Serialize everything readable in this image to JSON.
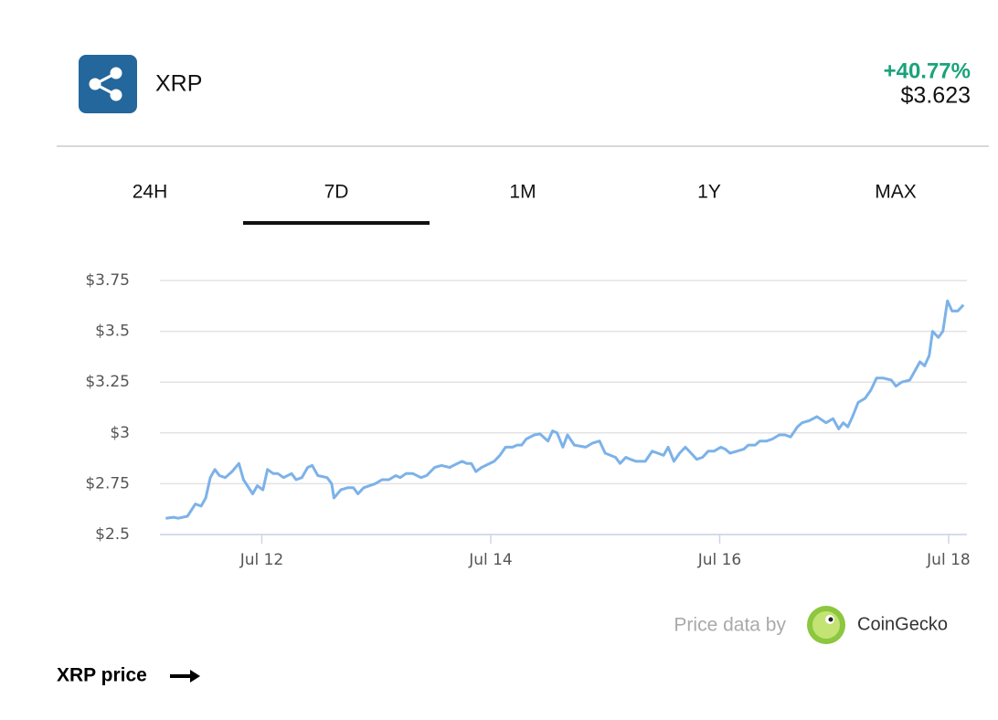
{
  "header": {
    "symbol": "XRP",
    "change": "+40.77%",
    "price": "$3.623"
  },
  "tabs": [
    "24H",
    "7D",
    "1M",
    "1Y",
    "MAX"
  ],
  "active_tab": 1,
  "chart_data": {
    "type": "line",
    "x": [
      11.16,
      11.23,
      11.27,
      11.35,
      11.42,
      11.47,
      11.51,
      11.55,
      11.59,
      11.63,
      11.68,
      11.74,
      11.8,
      11.84,
      11.92,
      11.96,
      12.01,
      12.05,
      12.1,
      12.14,
      12.19,
      12.26,
      12.3,
      12.35,
      12.4,
      12.44,
      12.49,
      12.57,
      12.61,
      12.63,
      12.69,
      12.75,
      12.8,
      12.84,
      12.89,
      12.99,
      13.05,
      13.11,
      13.17,
      13.21,
      13.26,
      13.32,
      13.39,
      13.44,
      13.51,
      13.57,
      13.64,
      13.71,
      13.75,
      13.79,
      13.83,
      13.87,
      13.92,
      14.03,
      14.08,
      14.13,
      14.19,
      14.23,
      14.27,
      14.31,
      14.38,
      14.43,
      14.5,
      14.54,
      14.58,
      14.63,
      14.67,
      14.73,
      14.83,
      14.89,
      14.95,
      15.0,
      15.09,
      15.13,
      15.18,
      15.22,
      15.27,
      15.35,
      15.41,
      15.46,
      15.51,
      15.55,
      15.6,
      15.65,
      15.7,
      15.75,
      15.8,
      15.85,
      15.9,
      15.95,
      16.01,
      16.05,
      16.09,
      16.15,
      16.21,
      16.25,
      16.31,
      16.35,
      16.41,
      16.46,
      16.52,
      16.57,
      16.62,
      16.68,
      16.72,
      16.78,
      16.85,
      16.93,
      16.99,
      17.04,
      17.08,
      17.12,
      17.16,
      17.21,
      17.27,
      17.32,
      17.37,
      17.43,
      17.5,
      17.54,
      17.59,
      17.66,
      17.7,
      17.75,
      17.79,
      17.83,
      17.86,
      17.91,
      17.95,
      17.99,
      18.03,
      18.08,
      18.13
    ],
    "series": [
      {
        "name": "XRP",
        "color": "#7cb2e8",
        "values": [
          2.58,
          2.585,
          2.58,
          2.59,
          2.65,
          2.64,
          2.68,
          2.78,
          2.82,
          2.79,
          2.78,
          2.81,
          2.85,
          2.77,
          2.7,
          2.74,
          2.72,
          2.82,
          2.8,
          2.8,
          2.78,
          2.8,
          2.77,
          2.78,
          2.83,
          2.84,
          2.79,
          2.78,
          2.75,
          2.68,
          2.72,
          2.73,
          2.73,
          2.7,
          2.73,
          2.75,
          2.77,
          2.77,
          2.79,
          2.78,
          2.8,
          2.8,
          2.78,
          2.79,
          2.83,
          2.84,
          2.83,
          2.85,
          2.86,
          2.85,
          2.85,
          2.81,
          2.83,
          2.86,
          2.89,
          2.93,
          2.93,
          2.94,
          2.94,
          2.97,
          2.99,
          2.995,
          2.96,
          3.01,
          3.0,
          2.93,
          2.99,
          2.94,
          2.93,
          2.95,
          2.96,
          2.9,
          2.88,
          2.85,
          2.88,
          2.87,
          2.86,
          2.86,
          2.91,
          2.9,
          2.89,
          2.93,
          2.86,
          2.9,
          2.93,
          2.9,
          2.87,
          2.88,
          2.91,
          2.91,
          2.93,
          2.92,
          2.9,
          2.91,
          2.92,
          2.94,
          2.94,
          2.96,
          2.96,
          2.97,
          2.99,
          2.99,
          2.98,
          3.03,
          3.05,
          3.06,
          3.08,
          3.05,
          3.07,
          3.02,
          3.05,
          3.03,
          3.08,
          3.15,
          3.17,
          3.21,
          3.27,
          3.27,
          3.26,
          3.23,
          3.25,
          3.26,
          3.3,
          3.35,
          3.33,
          3.38,
          3.5,
          3.47,
          3.5,
          3.65,
          3.6,
          3.6,
          3.63
        ]
      }
    ],
    "xlim": [
      11.11,
      18.16
    ],
    "xticks": [
      {
        "value": 12,
        "label": "Jul 12"
      },
      {
        "value": 14,
        "label": "Jul 14"
      },
      {
        "value": 16,
        "label": "Jul 16"
      },
      {
        "value": 18,
        "label": "Jul 18"
      }
    ],
    "ylim": [
      2.5,
      3.75
    ],
    "yticks": [
      {
        "value": 2.5,
        "label": "$2.5"
      },
      {
        "value": 2.75,
        "label": "$2.75"
      },
      {
        "value": 3,
        "label": "$3"
      },
      {
        "value": 3.25,
        "label": "$3.25"
      },
      {
        "value": 3.5,
        "label": "$3.5"
      },
      {
        "value": 3.75,
        "label": "$3.75"
      }
    ],
    "grid": true
  },
  "footer": {
    "attribution": "Price data by",
    "provider": "CoinGecko",
    "link": "XRP price"
  }
}
